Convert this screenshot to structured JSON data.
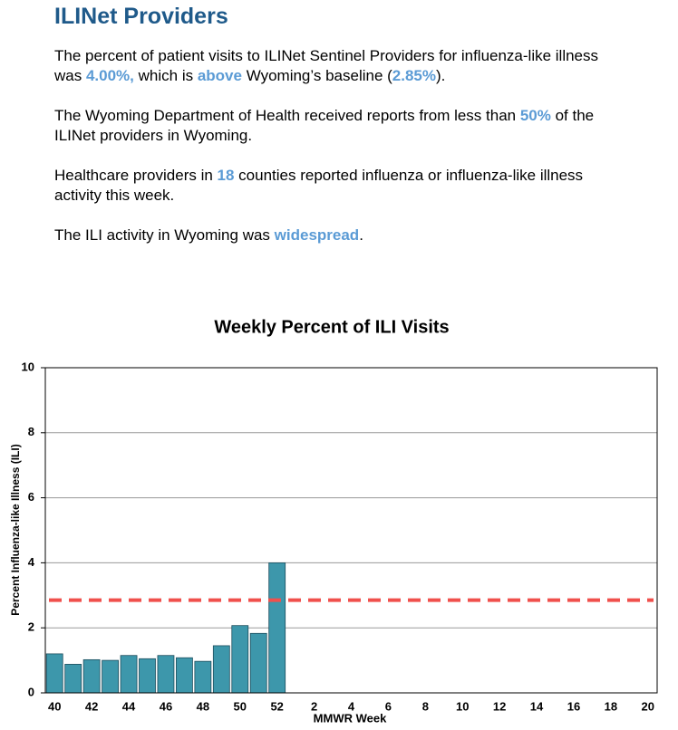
{
  "header": {
    "title": "ILINet Providers"
  },
  "paragraphs": [
    [
      {
        "text": "The percent of patient visits to ILINet Sentinel Providers for influenza-like illness was ",
        "emphasis": false
      },
      {
        "text": "4.00%,",
        "emphasis": true
      },
      {
        "text": " which is ",
        "emphasis": false
      },
      {
        "text": "above",
        "emphasis": true
      },
      {
        "text": " Wyoming’s baseline (",
        "emphasis": false
      },
      {
        "text": "2.85%",
        "emphasis": true
      },
      {
        "text": ").",
        "emphasis": false
      }
    ],
    [
      {
        "text": "The Wyoming Department of Health received reports from less than ",
        "emphasis": false
      },
      {
        "text": "50%",
        "emphasis": true
      },
      {
        "text": " of the ILINet providers in Wyoming.",
        "emphasis": false
      }
    ],
    [
      {
        "text": "Healthcare providers in ",
        "emphasis": false
      },
      {
        "text": "18",
        "emphasis": true
      },
      {
        "text": " counties reported influenza or influenza-like illness activity this week.",
        "emphasis": false
      }
    ],
    [
      {
        "text": "The ILI activity in Wyoming was ",
        "emphasis": false
      },
      {
        "text": "widespread",
        "emphasis": true
      },
      {
        "text": ".",
        "emphasis": false
      }
    ]
  ],
  "chart_data": {
    "type": "bar",
    "title": "Weekly Percent of ILI Visits",
    "x_label": "MMWR Week",
    "y_label": "Percent Influenza-like Illness (ILI)",
    "categories": [
      "40",
      null,
      "42",
      null,
      "44",
      null,
      "46",
      null,
      "48",
      null,
      "50",
      null,
      "52",
      null,
      "2",
      null,
      "4",
      null,
      "6",
      null,
      "8",
      null,
      "10",
      null,
      "12",
      null,
      "14",
      null,
      "16",
      null,
      "18",
      null,
      "20"
    ],
    "values": [
      1.2,
      0.88,
      1.02,
      1.0,
      1.15,
      1.05,
      1.15,
      1.08,
      0.97,
      1.45,
      2.07,
      1.83,
      4.0,
      null,
      null,
      null,
      null,
      null,
      null,
      null,
      null,
      null,
      null,
      null,
      null,
      null,
      null,
      null,
      null,
      null,
      null,
      null,
      null
    ],
    "color": "#3d97ab",
    "baseline": 2.85,
    "baseline_color": "#f0504c",
    "ylim": [
      0,
      10
    ],
    "yticks": [
      0,
      2,
      4,
      6,
      8,
      10
    ],
    "grid": true
  }
}
